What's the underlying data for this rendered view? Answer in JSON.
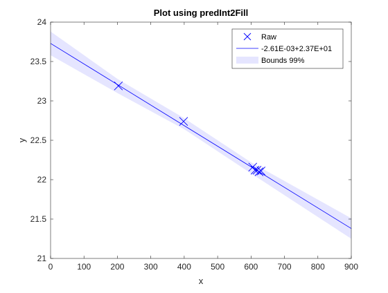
{
  "chart_data": {
    "type": "line",
    "title": "Plot using predInt2Fill",
    "xlabel": "x",
    "ylabel": "y",
    "xlim": [
      0,
      900
    ],
    "ylim": [
      21,
      24
    ],
    "xticks": [
      0,
      100,
      200,
      300,
      400,
      500,
      600,
      700,
      800,
      900
    ],
    "yticks": [
      21,
      21.5,
      22,
      22.5,
      23,
      23.5,
      24
    ],
    "xtick_labels": [
      "0",
      "100",
      "200",
      "300",
      "400",
      "500",
      "600",
      "700",
      "800",
      "900"
    ],
    "ytick_labels": [
      "21",
      "21.5",
      "22",
      "22.5",
      "23",
      "23.5",
      "24"
    ],
    "grid": false,
    "legend_position": "top-right",
    "series": [
      {
        "name": "Raw",
        "kind": "scatter",
        "marker": "x",
        "color": "#0000ff",
        "x": [
          203,
          398,
          605,
          612,
          618,
          624,
          630
        ],
        "y": [
          23.19,
          22.74,
          22.16,
          22.12,
          22.12,
          22.1,
          22.11
        ]
      },
      {
        "name": "-2.61E-03+2.37E+01",
        "kind": "line",
        "color": "#0000ff",
        "x": [
          0,
          900
        ],
        "y": [
          23.73,
          21.38
        ]
      },
      {
        "name": "Bounds 99%",
        "kind": "band",
        "color": "#e5e5ff",
        "x": [
          0,
          200,
          400,
          600,
          900
        ],
        "lower": [
          23.58,
          23.1,
          22.64,
          22.08,
          21.25
        ],
        "upper": [
          23.88,
          23.28,
          22.78,
          22.22,
          21.51
        ]
      }
    ]
  }
}
